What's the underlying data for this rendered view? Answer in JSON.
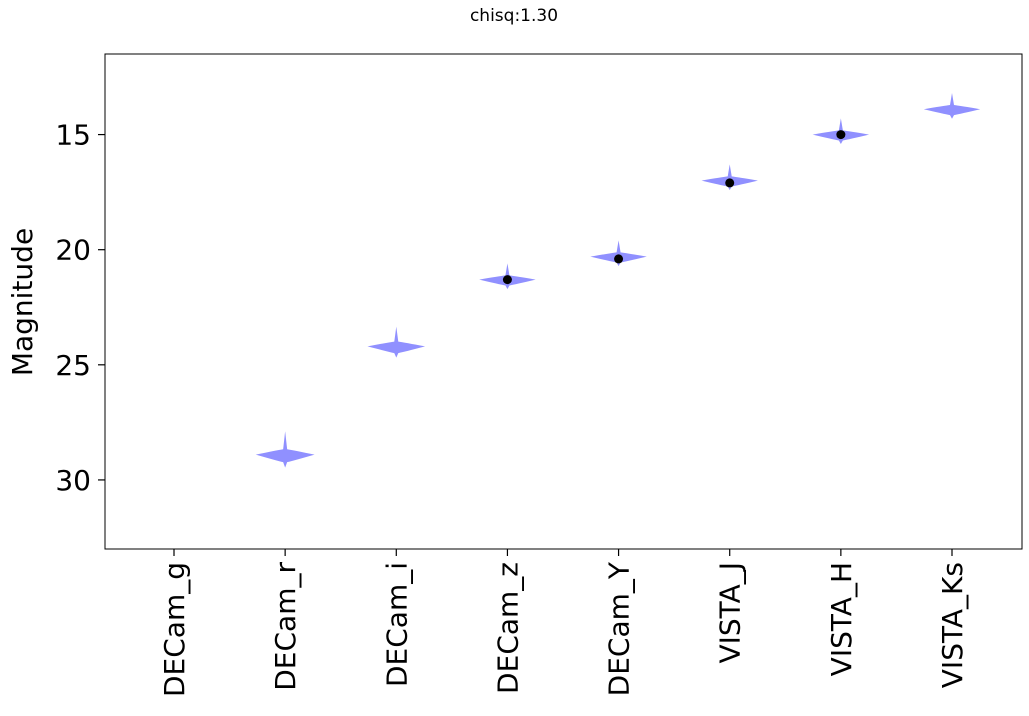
{
  "chart_data": {
    "type": "violin",
    "title": "chisq:1.30",
    "xlabel": "",
    "ylabel": "Magnitude",
    "y_inverted": true,
    "ylim": [
      11.5,
      33.0
    ],
    "yticks": [
      15,
      20,
      25,
      30
    ],
    "grid": false,
    "categories": [
      "DECam_g",
      "DECam_r",
      "DECam_i",
      "DECam_z",
      "DECam_Y",
      "VISTA_J",
      "VISTA_H",
      "VISTA_Ks"
    ],
    "violins": [
      {
        "category": "DECam_g",
        "median": null,
        "spread": null
      },
      {
        "category": "DECam_r",
        "median": 28.9,
        "spread": 0.6
      },
      {
        "category": "DECam_i",
        "median": 24.2,
        "spread": 0.45
      },
      {
        "category": "DECam_z",
        "median": 21.3,
        "spread": 0.3
      },
      {
        "category": "DECam_Y",
        "median": 20.3,
        "spread": 0.3
      },
      {
        "category": "VISTA_J",
        "median": 17.0,
        "spread": 0.3
      },
      {
        "category": "VISTA_H",
        "median": 15.0,
        "spread": 0.3
      },
      {
        "category": "VISTA_Ks",
        "median": 13.9,
        "spread": 0.3
      }
    ],
    "observed": [
      {
        "category": "DECam_z",
        "magnitude": 21.3
      },
      {
        "category": "DECam_Y",
        "magnitude": 20.4
      },
      {
        "category": "VISTA_J",
        "magnitude": 17.1
      },
      {
        "category": "VISTA_H",
        "magnitude": 15.0
      }
    ],
    "colors": {
      "violin": "#8a8aff",
      "observed": "#000000",
      "axes": "#000000"
    }
  }
}
